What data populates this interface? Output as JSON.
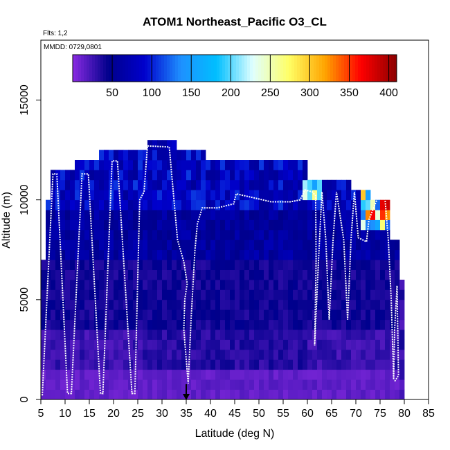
{
  "chart_data": {
    "type": "heatmap",
    "title": "ATOM1 Northeast_Pacific O3_CL",
    "flights_label": "Flts: 1,2",
    "dates_label": "MMDD: 0729,0801",
    "xlabel": "Latitude (deg N)",
    "ylabel": "Altitude (m)",
    "xlim": [
      5,
      85
    ],
    "ylim": [
      0,
      18000
    ],
    "xticks": [
      5,
      10,
      15,
      20,
      25,
      30,
      35,
      40,
      45,
      50,
      55,
      60,
      65,
      70,
      75,
      80,
      85
    ],
    "yticks": [
      0,
      5000,
      10000,
      15000
    ],
    "colorbar": {
      "range": [
        0,
        410
      ],
      "ticks": [
        50,
        100,
        150,
        200,
        250,
        300,
        350,
        400
      ],
      "colors": [
        "#8a2be2",
        "#00008b",
        "#0000cd",
        "#1e90ff",
        "#00bfff",
        "#e0ffff",
        "#ffff66",
        "#ffa500",
        "#ff0000",
        "#8b0000"
      ]
    },
    "marker_latitude": 35,
    "flight_track": [
      [
        5.3,
        200
      ],
      [
        7.5,
        11300
      ],
      [
        8.3,
        11300
      ],
      [
        10.5,
        300
      ],
      [
        11.3,
        300
      ],
      [
        13.5,
        11300
      ],
      [
        14.8,
        11300
      ],
      [
        17.3,
        300
      ],
      [
        17.8,
        300
      ],
      [
        19.7,
        11950
      ],
      [
        20.8,
        11950
      ],
      [
        23.8,
        300
      ],
      [
        24.4,
        300
      ],
      [
        25.4,
        10000
      ],
      [
        26.3,
        10400
      ],
      [
        27.0,
        12700
      ],
      [
        31.5,
        12650
      ],
      [
        33.2,
        8000
      ],
      [
        34.5,
        6900
      ],
      [
        35.2,
        5800
      ],
      [
        34.7,
        5000
      ],
      [
        34.5,
        3500
      ],
      [
        35.0,
        2000
      ],
      [
        35.4,
        800
      ],
      [
        36.0,
        4000
      ],
      [
        36.8,
        7500
      ],
      [
        37.3,
        8800
      ],
      [
        38.3,
        9600
      ],
      [
        41.5,
        9600
      ],
      [
        44.8,
        9800
      ],
      [
        45.3,
        10300
      ],
      [
        49.0,
        10100
      ],
      [
        52.5,
        9900
      ],
      [
        56.5,
        9900
      ],
      [
        58.5,
        10000
      ],
      [
        59.5,
        10500
      ],
      [
        61.0,
        10400
      ],
      [
        61.7,
        10200
      ],
      [
        61.8,
        7000
      ],
      [
        61.5,
        2700
      ],
      [
        62.3,
        7000
      ],
      [
        63.0,
        10400
      ],
      [
        63.8,
        8000
      ],
      [
        64.5,
        4000
      ],
      [
        65.3,
        8000
      ],
      [
        66.0,
        10400
      ],
      [
        67.5,
        8000
      ],
      [
        68.3,
        4000
      ],
      [
        69.0,
        8000
      ],
      [
        69.7,
        10400
      ],
      [
        70.5,
        8100
      ],
      [
        72.2,
        7900
      ],
      [
        72.7,
        9000
      ],
      [
        74.5,
        10100
      ],
      [
        76.0,
        10100
      ],
      [
        76.7,
        8000
      ],
      [
        77.3,
        5000
      ],
      [
        77.8,
        1000
      ],
      [
        78.0,
        3500
      ],
      [
        78.5,
        5700
      ],
      [
        78.8,
        1200
      ],
      [
        78.0,
        900
      ]
    ]
  }
}
